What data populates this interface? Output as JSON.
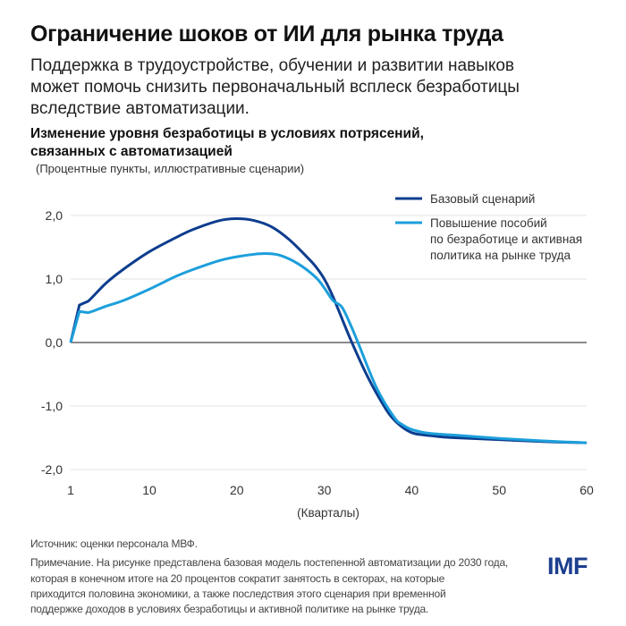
{
  "header": {
    "title": "Ограничение шоков от ИИ для рынка труда",
    "subtitle_lines": [
      "Поддержка в трудоустройстве, обучении и развитии навыков",
      "может помочь снизить первоначальный всплеск безработицы",
      "вследствие автоматизации."
    ]
  },
  "chart_data": {
    "type": "line",
    "title_lines": [
      "Изменение уровня безработицы в условиях потрясений,",
      "связанных с автоматизацией"
    ],
    "note": "(Процентные пункты, иллюстративные сценарии)",
    "xlabel": "(Кварталы)",
    "ylabel": "",
    "xlim": [
      1,
      60
    ],
    "ylim": [
      -2,
      2
    ],
    "x_ticks": [
      1,
      10,
      20,
      30,
      40,
      50,
      60
    ],
    "y_ticks": [
      2,
      1,
      0,
      -1,
      -2
    ],
    "y_tick_labels": [
      "2,0",
      "1,0",
      "0,0",
      "-1,0",
      "-2,0"
    ],
    "grid": true,
    "legend_position": "top-right",
    "series": [
      {
        "name": "Базовый сценарий",
        "color": "#0d3d8e",
        "x": [
          1,
          2,
          3,
          5,
          7,
          10,
          13,
          15,
          18,
          20,
          22,
          24,
          26,
          28,
          29,
          30,
          31,
          33,
          35,
          37,
          38,
          39,
          40,
          41,
          43,
          45,
          50,
          55,
          60
        ],
        "y": [
          0,
          0.59,
          0.65,
          0.93,
          1.15,
          1.43,
          1.65,
          1.78,
          1.92,
          1.95,
          1.92,
          1.82,
          1.62,
          1.35,
          1.2,
          1.0,
          0.72,
          0.05,
          -0.55,
          -1.04,
          -1.22,
          -1.34,
          -1.42,
          -1.45,
          -1.48,
          -1.5,
          -1.53,
          -1.56,
          -1.58
        ]
      },
      {
        "name": "Повышение пособий по безработице и активная политика на рынке труда",
        "legend_lines": [
          "Повышение пособий",
          "по безработице и активная",
          "политика на рынке труда"
        ],
        "color": "#1c9fdb",
        "x": [
          1,
          2,
          3,
          5,
          7,
          10,
          13,
          15,
          18,
          20,
          22,
          23.5,
          25,
          27,
          29,
          30,
          31,
          32,
          33,
          34,
          36,
          38,
          39,
          40,
          42,
          45,
          50,
          55,
          60
        ],
        "y": [
          0,
          0.49,
          0.47,
          0.57,
          0.66,
          0.84,
          1.04,
          1.15,
          1.29,
          1.35,
          1.39,
          1.4,
          1.37,
          1.24,
          1.03,
          0.86,
          0.66,
          0.56,
          0.28,
          -0.05,
          -0.72,
          -1.18,
          -1.3,
          -1.37,
          -1.43,
          -1.46,
          -1.51,
          -1.55,
          -1.58
        ]
      }
    ]
  },
  "footer": {
    "source": "Источник: оценки персонала МВФ.",
    "note_lines": [
      "Примечание. На рисунке представлена базовая модель постепенной автоматизации до 2030 года,",
      "которая в конечном итоге на 20 процентов сократит занятость в секторах, на которые",
      "приходится половина экономики, а также последствия этого сценария при временной",
      "поддержке доходов в условиях безработицы и активной политике на рынке труда."
    ],
    "logo": "IMF"
  }
}
